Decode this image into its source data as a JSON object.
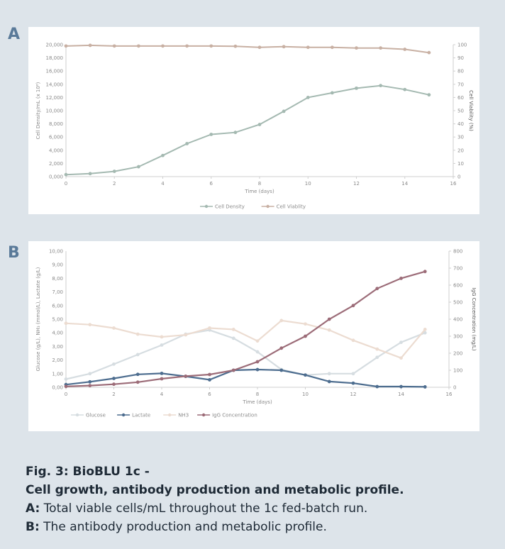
{
  "colors": {
    "background": "#dde4ea",
    "panel_letter": "#5a7a99",
    "cell_density": "#a4b9b1",
    "cell_viability": "#c8b0a3",
    "glucose": "#d6dde1",
    "lactate": "#4d6d8f",
    "nh3": "#ecdcd1",
    "igg": "#9c6c78",
    "axis_text": "#8a8a8a",
    "axis_line": "#cfcfcf"
  },
  "panel_a": {
    "letter": "A"
  },
  "panel_b": {
    "letter": "B"
  },
  "caption": {
    "line1": "Fig. 3: BioBLU 1c -",
    "line2": "Cell growth, antibody production and metabolic profile.",
    "line3_label": "A:",
    "line3_text": " Total viable cells/mL throughout the 1c fed-batch run.",
    "line4_label": "B:",
    "line4_text": " The antibody production and metabolic profile."
  },
  "chart_data": [
    {
      "type": "line",
      "panel": "A",
      "xlabel": "Time (days)",
      "ylabel": "Cell Density/mL (x 10⁶)",
      "y2label": "Cell Viability (%)",
      "xlim": [
        0,
        16
      ],
      "xticks": [
        0,
        2,
        4,
        6,
        8,
        10,
        12,
        14,
        16
      ],
      "ylim": [
        0,
        20
      ],
      "yticks": [
        "0,000",
        "2,000",
        "4,000",
        "6,000",
        "8,000",
        "10,000",
        "12,000",
        "14,000",
        "16,000",
        "18,000",
        "20,000"
      ],
      "y2lim": [
        0,
        100
      ],
      "y2ticks": [
        "0",
        "10",
        "20",
        "30",
        "40",
        "50",
        "60",
        "70",
        "80",
        "90",
        "100"
      ],
      "grid": false,
      "legend": "bottom-center",
      "series": [
        {
          "name": "Cell Density",
          "axis": "left",
          "color": "#a4b9b1",
          "x": [
            0,
            1,
            2,
            3,
            4,
            5,
            6,
            7,
            8,
            9,
            10,
            11,
            12,
            13,
            14,
            15
          ],
          "y": [
            0.3,
            0.45,
            0.8,
            1.5,
            3.2,
            5.0,
            6.4,
            6.7,
            7.9,
            9.9,
            12.0,
            12.7,
            13.4,
            13.8,
            13.2,
            12.4
          ]
        },
        {
          "name": "Cell Viablity",
          "axis": "right",
          "color": "#c8b0a3",
          "x": [
            0,
            1,
            2,
            3,
            4,
            5,
            6,
            7,
            8,
            9,
            10,
            11,
            12,
            13,
            14,
            15
          ],
          "y": [
            99,
            99.5,
            99,
            99,
            99,
            99,
            99,
            98.8,
            98,
            98.5,
            98,
            98,
            97.5,
            97.5,
            96.5,
            94
          ]
        }
      ]
    },
    {
      "type": "line",
      "panel": "B",
      "xlabel": "Time (days)",
      "ylabel": "Glucose (g/L), NH₃ (mmol/L), Lactate (g/L)",
      "y2label": "IgG Concentration (mg/L)",
      "xlim": [
        0,
        16
      ],
      "xticks": [
        0,
        2,
        4,
        6,
        8,
        10,
        12,
        14,
        16
      ],
      "ylim": [
        0,
        10
      ],
      "yticks": [
        "0,00",
        "1,00",
        "2,00",
        "3,00",
        "4,00",
        "5,00",
        "6,00",
        "7,00",
        "8,00",
        "9,00",
        "10,00"
      ],
      "y2lim": [
        0,
        800
      ],
      "y2ticks": [
        "0",
        "100",
        "200",
        "300",
        "400",
        "500",
        "600",
        "700",
        "800"
      ],
      "grid": false,
      "legend": "bottom-left",
      "series": [
        {
          "name": "Glucose",
          "axis": "left",
          "color": "#d6dde1",
          "x": [
            0,
            1,
            2,
            3,
            4,
            5,
            6,
            7,
            8,
            9,
            10,
            11,
            12,
            13,
            14,
            15
          ],
          "y": [
            0.6,
            1.0,
            1.7,
            2.4,
            3.1,
            3.9,
            4.2,
            3.6,
            2.6,
            1.3,
            0.9,
            1.0,
            1.0,
            2.2,
            3.3,
            4.0
          ]
        },
        {
          "name": "Lactate",
          "axis": "left",
          "color": "#4d6d8f",
          "x": [
            0,
            1,
            2,
            3,
            4,
            5,
            6,
            7,
            8,
            9,
            10,
            11,
            12,
            13,
            14,
            15
          ],
          "y": [
            0.2,
            0.4,
            0.65,
            0.95,
            1.02,
            0.8,
            0.55,
            1.25,
            1.3,
            1.25,
            0.9,
            0.42,
            0.3,
            0.05,
            0.05,
            0.03
          ]
        },
        {
          "name": "NH3",
          "axis": "left",
          "color": "#ecdcd1",
          "x": [
            0,
            1,
            2,
            3,
            4,
            5,
            6,
            7,
            8,
            9,
            10,
            11,
            12,
            13,
            14,
            15
          ],
          "y": [
            4.7,
            4.6,
            4.35,
            3.9,
            3.7,
            3.85,
            4.35,
            4.25,
            3.4,
            4.9,
            4.65,
            4.2,
            3.45,
            2.8,
            2.15,
            4.25
          ]
        },
        {
          "name": "IgG Concentration",
          "axis": "right",
          "color": "#9c6c78",
          "x": [
            0,
            1,
            2,
            3,
            4,
            5,
            6,
            7,
            8,
            9,
            10,
            11,
            12,
            13,
            14,
            15
          ],
          "y": [
            5,
            10,
            18,
            30,
            50,
            65,
            75,
            100,
            150,
            230,
            300,
            400,
            480,
            580,
            640,
            680
          ]
        }
      ]
    }
  ]
}
